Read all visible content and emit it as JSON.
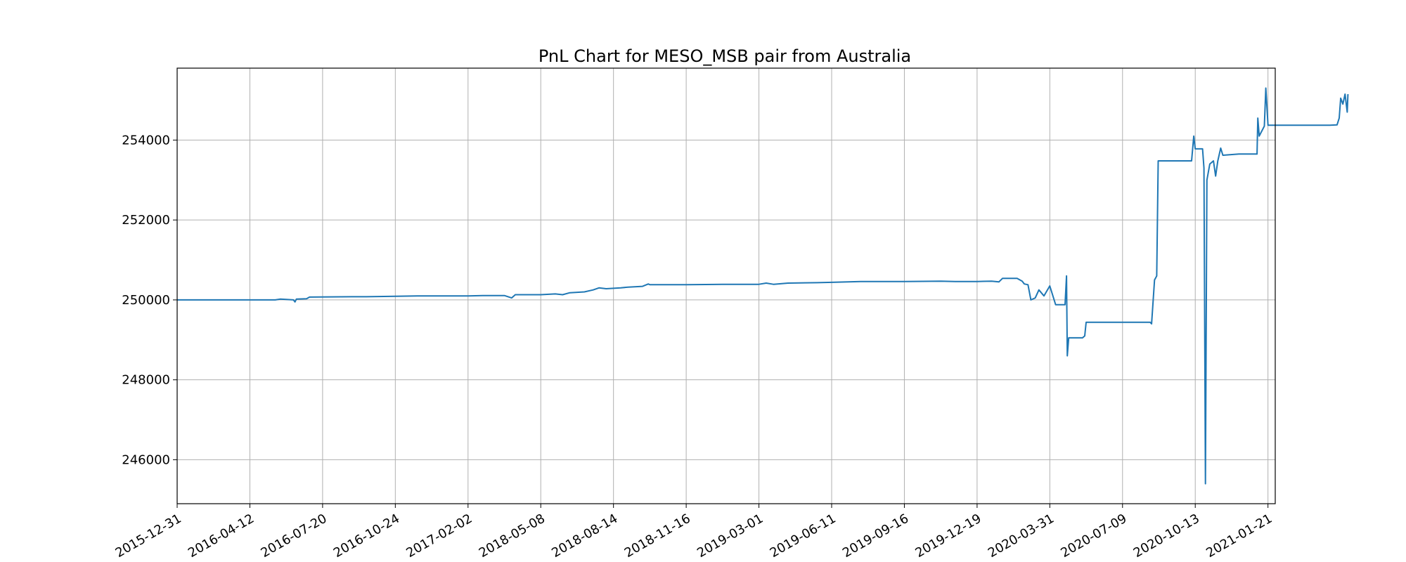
{
  "chart_data": {
    "type": "line",
    "title": "PnL Chart for MESO_MSB pair from Australia",
    "xlabel": "",
    "ylabel": "",
    "grid": true,
    "legend": "none",
    "line_color": "#1f77b4",
    "ylim": [
      244900,
      255800
    ],
    "y_ticks": [
      246000,
      248000,
      250000,
      252000,
      254000
    ],
    "x_tick_labels": [
      "2015-12-31",
      "2016-04-12",
      "2016-07-20",
      "2016-10-24",
      "2017-02-02",
      "2018-05-08",
      "2018-08-14",
      "2018-11-16",
      "2019-03-01",
      "2019-06-11",
      "2019-09-16",
      "2019-12-19",
      "2020-03-31",
      "2020-07-09",
      "2020-10-13",
      "2021-01-21"
    ],
    "series": [
      {
        "name": "",
        "points": [
          [
            0.0,
            250000
          ],
          [
            1.35,
            250000
          ],
          [
            1.42,
            250020
          ],
          [
            1.6,
            250000
          ],
          [
            1.62,
            249950
          ],
          [
            1.64,
            250020
          ],
          [
            1.78,
            250030
          ],
          [
            1.82,
            250070
          ],
          [
            2.4,
            250080
          ],
          [
            2.6,
            250080
          ],
          [
            3.0,
            250090
          ],
          [
            3.3,
            250100
          ],
          [
            3.6,
            250100
          ],
          [
            4.0,
            250100
          ],
          [
            4.2,
            250110
          ],
          [
            4.5,
            250110
          ],
          [
            4.6,
            250050
          ],
          [
            4.65,
            250130
          ],
          [
            5.0,
            250130
          ],
          [
            5.2,
            250150
          ],
          [
            5.3,
            250130
          ],
          [
            5.4,
            250180
          ],
          [
            5.6,
            250200
          ],
          [
            5.72,
            250250
          ],
          [
            5.8,
            250300
          ],
          [
            5.9,
            250280
          ],
          [
            6.1,
            250300
          ],
          [
            6.2,
            250320
          ],
          [
            6.4,
            250340
          ],
          [
            6.48,
            250400
          ],
          [
            6.5,
            250380
          ],
          [
            7.0,
            250380
          ],
          [
            7.5,
            250390
          ],
          [
            8.0,
            250390
          ],
          [
            8.1,
            250420
          ],
          [
            8.2,
            250390
          ],
          [
            8.4,
            250420
          ],
          [
            8.8,
            250430
          ],
          [
            9.0,
            250440
          ],
          [
            9.4,
            250460
          ],
          [
            10.0,
            250460
          ],
          [
            10.5,
            250470
          ],
          [
            10.7,
            250460
          ],
          [
            11.0,
            250460
          ],
          [
            11.2,
            250470
          ],
          [
            11.3,
            250450
          ],
          [
            11.35,
            250540
          ],
          [
            11.55,
            250540
          ],
          [
            11.62,
            250470
          ],
          [
            11.65,
            250400
          ],
          [
            11.7,
            250380
          ],
          [
            11.74,
            250000
          ],
          [
            11.8,
            250050
          ],
          [
            11.85,
            250250
          ],
          [
            11.92,
            250100
          ],
          [
            12.0,
            250350
          ],
          [
            12.08,
            249880
          ],
          [
            12.21,
            249880
          ],
          [
            12.23,
            250600
          ],
          [
            12.24,
            248600
          ],
          [
            12.26,
            249050
          ],
          [
            12.45,
            249050
          ],
          [
            12.48,
            249100
          ],
          [
            12.5,
            249440
          ],
          [
            13.0,
            249440
          ],
          [
            13.38,
            249440
          ],
          [
            13.4,
            249400
          ],
          [
            13.44,
            250500
          ],
          [
            13.47,
            250600
          ],
          [
            13.49,
            253480
          ],
          [
            13.8,
            253480
          ],
          [
            13.95,
            253480
          ],
          [
            13.98,
            254100
          ],
          [
            14.0,
            253780
          ],
          [
            14.1,
            253780
          ],
          [
            14.12,
            253300
          ],
          [
            14.14,
            245400
          ],
          [
            14.16,
            253000
          ],
          [
            14.2,
            253400
          ],
          [
            14.25,
            253480
          ],
          [
            14.28,
            253100
          ],
          [
            14.31,
            253480
          ],
          [
            14.35,
            253800
          ],
          [
            14.38,
            253620
          ],
          [
            14.6,
            253650
          ],
          [
            14.8,
            253650
          ],
          [
            14.85,
            253650
          ],
          [
            14.86,
            254550
          ],
          [
            14.88,
            254100
          ],
          [
            14.95,
            254350
          ],
          [
            14.97,
            255300
          ],
          [
            15.0,
            254370
          ],
          [
            15.6,
            254370
          ],
          [
            15.85,
            254370
          ],
          [
            15.95,
            254380
          ],
          [
            15.98,
            254550
          ],
          [
            16.0,
            255050
          ],
          [
            16.03,
            254900
          ],
          [
            16.06,
            255150
          ],
          [
            16.09,
            254700
          ],
          [
            16.1,
            255150
          ]
        ]
      }
    ]
  }
}
